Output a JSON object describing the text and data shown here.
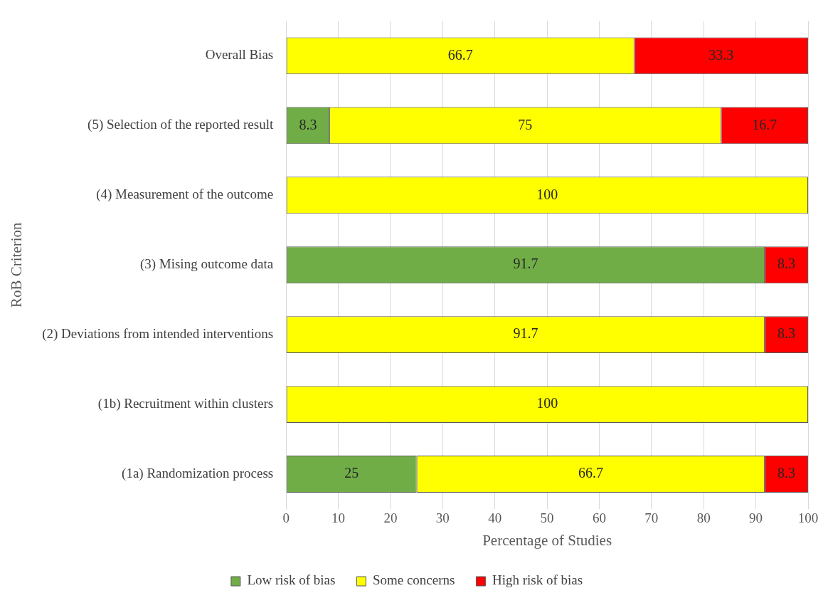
{
  "chart_data": {
    "type": "bar",
    "orientation": "horizontal",
    "stacked": true,
    "xlabel": "Percentage of Studies",
    "ylabel": "RoB Criterion",
    "categories": [
      "Overall Bias",
      "(5) Selection of the reported result",
      "(4) Measurement of the outcome",
      "(3) Mising outcome data",
      "(2) Deviations from intended interventions",
      "(1b) Recruitment within clusters",
      "(1a) Randomization process"
    ],
    "series": [
      {
        "name": "Low risk of bias",
        "color": "#70ad47",
        "values": [
          null,
          8.3,
          null,
          91.7,
          null,
          null,
          25
        ]
      },
      {
        "name": "Some concerns",
        "color": "#ffff00",
        "values": [
          66.7,
          75,
          100,
          null,
          91.7,
          100,
          66.7
        ]
      },
      {
        "name": "High risk of bias",
        "color": "#ff0000",
        "values": [
          33.3,
          16.7,
          null,
          8.3,
          8.3,
          null,
          8.3
        ]
      }
    ],
    "xlim": [
      0,
      100
    ],
    "xticks": [
      0,
      10,
      20,
      30,
      40,
      50,
      60,
      70,
      80,
      90,
      100
    ],
    "grid": "x",
    "legend": "bottom",
    "data_labels": true
  }
}
